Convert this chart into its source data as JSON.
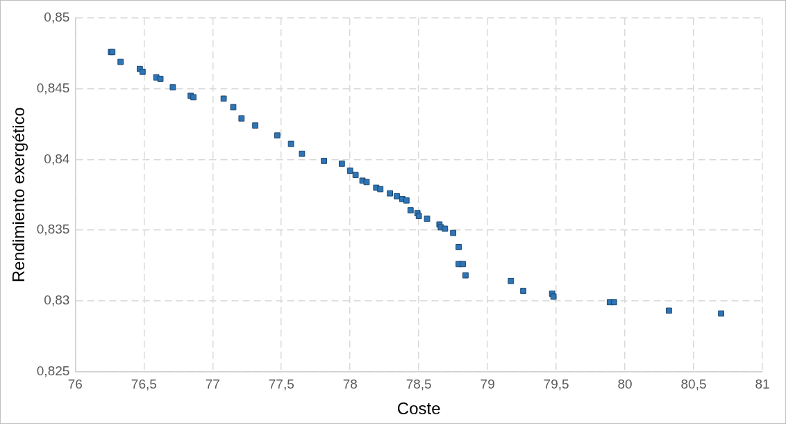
{
  "chart_data": {
    "type": "scatter",
    "xlabel": "Coste",
    "ylabel": "Rendimiento exergético",
    "x": [
      76.26,
      76.27,
      76.33,
      76.47,
      76.49,
      76.59,
      76.62,
      76.71,
      76.84,
      76.86,
      77.08,
      77.15,
      77.21,
      77.31,
      77.47,
      77.57,
      77.65,
      77.81,
      77.94,
      78.0,
      78.04,
      78.09,
      78.12,
      78.19,
      78.22,
      78.29,
      78.34,
      78.38,
      78.41,
      78.44,
      78.49,
      78.5,
      78.56,
      78.65,
      78.66,
      78.69,
      78.75,
      78.79,
      78.79,
      78.82,
      78.84,
      79.17,
      79.26,
      79.47,
      79.48,
      79.89,
      79.92,
      80.32,
      80.7
    ],
    "values": [
      0.8476,
      0.8476,
      0.8469,
      0.8464,
      0.8462,
      0.8458,
      0.8457,
      0.8451,
      0.8445,
      0.8444,
      0.8443,
      0.8437,
      0.8429,
      0.8424,
      0.8417,
      0.8411,
      0.8404,
      0.8399,
      0.8397,
      0.8392,
      0.8389,
      0.8385,
      0.8384,
      0.838,
      0.8379,
      0.8376,
      0.8374,
      0.8372,
      0.8371,
      0.8364,
      0.8362,
      0.836,
      0.8358,
      0.8354,
      0.8352,
      0.8351,
      0.8348,
      0.8338,
      0.8326,
      0.8326,
      0.8318,
      0.8314,
      0.8307,
      0.8305,
      0.8303,
      0.8299,
      0.8299,
      0.8293,
      0.8291
    ],
    "color": "#2e75b6",
    "marker": "square",
    "grid": true,
    "legend": false,
    "xlim": [
      76,
      81
    ],
    "xticks": [
      76,
      {
        "value": 76.5,
        "label": "76,5"
      },
      77,
      {
        "value": 77.5,
        "label": "77,5"
      },
      78,
      {
        "value": 78.5,
        "label": "78,5"
      },
      79,
      {
        "value": 79.5,
        "label": "79,5"
      },
      80,
      {
        "value": 80.5,
        "label": "80,5"
      },
      81
    ],
    "ylim": [
      0.825,
      0.85
    ],
    "yticks": [
      {
        "value": 0.825,
        "label": "0,825"
      },
      {
        "value": 0.83,
        "label": "0,83"
      },
      {
        "value": 0.835,
        "label": "0,835"
      },
      {
        "value": 0.84,
        "label": "0,84"
      },
      {
        "value": 0.845,
        "label": "0,845"
      },
      {
        "value": 0.85,
        "label": "0,85"
      }
    ]
  }
}
